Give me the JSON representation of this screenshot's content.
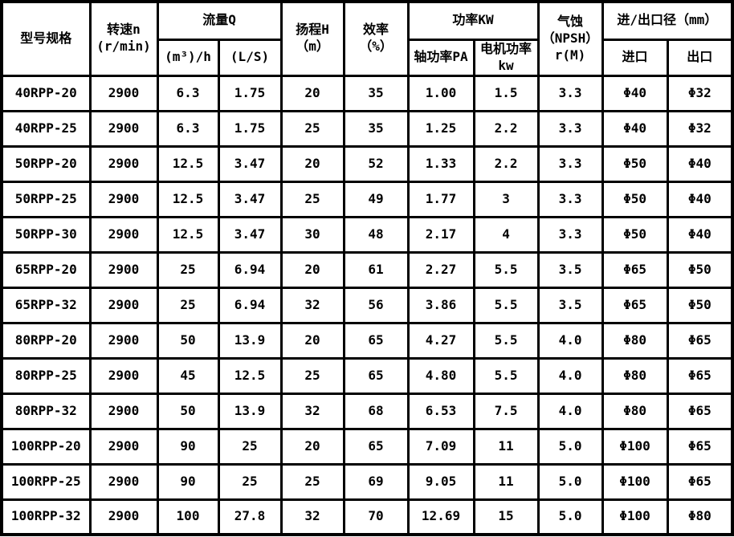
{
  "table": {
    "headers": {
      "model": "型号规格",
      "speed": "转速n\n(r/min)",
      "flow_group": "流量Q",
      "flow_m3h": "(m³)/h",
      "flow_ls": "(L/S)",
      "head": "扬程H\n（m）",
      "efficiency": "效率\n（%）",
      "power_group": "功率KW",
      "power_shaft": "轴功率PA",
      "power_motor": "电机功率\nkw",
      "npsh": "气蚀\n（NPSH）\nr(M)",
      "inlet_outlet_group": "进/出口径（mm）",
      "inlet": "进口",
      "outlet": "出口"
    },
    "rows": [
      [
        "40RPP-20",
        "2900",
        "6.3",
        "1.75",
        "20",
        "35",
        "1.00",
        "1.5",
        "3.3",
        "Φ40",
        "Φ32"
      ],
      [
        "40RPP-25",
        "2900",
        "6.3",
        "1.75",
        "25",
        "35",
        "1.25",
        "2.2",
        "3.3",
        "Φ40",
        "Φ32"
      ],
      [
        "50RPP-20",
        "2900",
        "12.5",
        "3.47",
        "20",
        "52",
        "1.33",
        "2.2",
        "3.3",
        "Φ50",
        "Φ40"
      ],
      [
        "50RPP-25",
        "2900",
        "12.5",
        "3.47",
        "25",
        "49",
        "1.77",
        "3",
        "3.3",
        "Φ50",
        "Φ40"
      ],
      [
        "50RPP-30",
        "2900",
        "12.5",
        "3.47",
        "30",
        "48",
        "2.17",
        "4",
        "3.3",
        "Φ50",
        "Φ40"
      ],
      [
        "65RPP-20",
        "2900",
        "25",
        "6.94",
        "20",
        "61",
        "2.27",
        "5.5",
        "3.5",
        "Φ65",
        "Φ50"
      ],
      [
        "65RPP-32",
        "2900",
        "25",
        "6.94",
        "32",
        "56",
        "3.86",
        "5.5",
        "3.5",
        "Φ65",
        "Φ50"
      ],
      [
        "80RPP-20",
        "2900",
        "50",
        "13.9",
        "20",
        "65",
        "4.27",
        "5.5",
        "4.0",
        "Φ80",
        "Φ65"
      ],
      [
        "80RPP-25",
        "2900",
        "45",
        "12.5",
        "25",
        "65",
        "4.80",
        "5.5",
        "4.0",
        "Φ80",
        "Φ65"
      ],
      [
        "80RPP-32",
        "2900",
        "50",
        "13.9",
        "32",
        "68",
        "6.53",
        "7.5",
        "4.0",
        "Φ80",
        "Φ65"
      ],
      [
        "100RPP-20",
        "2900",
        "90",
        "25",
        "20",
        "65",
        "7.09",
        "11",
        "5.0",
        "Φ100",
        "Φ65"
      ],
      [
        "100RPP-25",
        "2900",
        "90",
        "25",
        "25",
        "69",
        "9.05",
        "11",
        "5.0",
        "Φ100",
        "Φ65"
      ],
      [
        "100RPP-32",
        "2900",
        "100",
        "27.8",
        "32",
        "70",
        "12.69",
        "15",
        "5.0",
        "Φ100",
        "Φ80"
      ]
    ],
    "cell_names": [
      "cell-model",
      "cell-speed",
      "cell-flow-m3h",
      "cell-flow-ls",
      "cell-head",
      "cell-efficiency",
      "cell-shaft-power",
      "cell-motor-power",
      "cell-npsh",
      "cell-inlet",
      "cell-outlet"
    ]
  },
  "colors": {
    "border": "#000000",
    "background": "#ffffff",
    "text": "#000000"
  }
}
